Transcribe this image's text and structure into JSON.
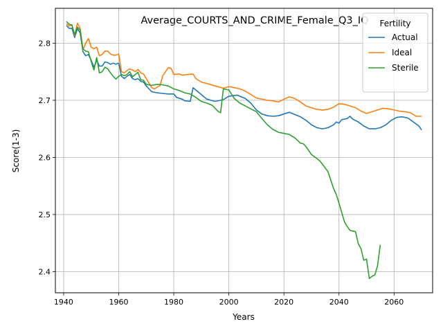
{
  "chart_data": {
    "type": "line",
    "title": "Average_COURTS_AND_CRIME_Female_Q3_IQ",
    "xlabel": "Years",
    "ylabel": "Score(1-3)",
    "xlim": [
      1937,
      2074
    ],
    "ylim": [
      2.363,
      2.861
    ],
    "xticks": [
      1940,
      1960,
      1980,
      2000,
      2020,
      2040,
      2060
    ],
    "yticks": [
      2.4,
      2.5,
      2.6,
      2.7,
      2.8
    ],
    "xtick_labels": [
      "1940",
      "1960",
      "1980",
      "2000",
      "2020",
      "2040",
      "2060"
    ],
    "ytick_labels": [
      "2.4",
      "2.5",
      "2.6",
      "2.7",
      "2.8"
    ],
    "grid": true,
    "legend": {
      "title": "Fertility",
      "placement": "top-right"
    },
    "series": [
      {
        "name": "Actual",
        "color": "#1f77b4",
        "points": [
          [
            1941,
            2.831
          ],
          [
            1942,
            2.826
          ],
          [
            1943,
            2.826
          ],
          [
            1944,
            2.81
          ],
          [
            1945,
            2.825
          ],
          [
            1946,
            2.818
          ],
          [
            1947,
            2.785
          ],
          [
            1948,
            2.778
          ],
          [
            1949,
            2.78
          ],
          [
            1950,
            2.77
          ],
          [
            1951,
            2.758
          ],
          [
            1952,
            2.77
          ],
          [
            1953,
            2.76
          ],
          [
            1954,
            2.76
          ],
          [
            1955,
            2.767
          ],
          [
            1956,
            2.766
          ],
          [
            1957,
            2.763
          ],
          [
            1958,
            2.765
          ],
          [
            1959,
            2.763
          ],
          [
            1960,
            2.765
          ],
          [
            1961,
            2.742
          ],
          [
            1962,
            2.738
          ],
          [
            1963,
            2.742
          ],
          [
            1964,
            2.745
          ],
          [
            1965,
            2.738
          ],
          [
            1966,
            2.736
          ],
          [
            1967,
            2.738
          ],
          [
            1968,
            2.733
          ],
          [
            1969,
            2.732
          ],
          [
            1970,
            2.725
          ],
          [
            1971,
            2.72
          ],
          [
            1972,
            2.715
          ],
          [
            1974,
            2.713
          ],
          [
            1976,
            2.712
          ],
          [
            1978,
            2.711
          ],
          [
            1980,
            2.711
          ],
          [
            1981,
            2.705
          ],
          [
            1983,
            2.702
          ],
          [
            1984,
            2.699
          ],
          [
            1986,
            2.698
          ],
          [
            1987,
            2.722
          ],
          [
            1988,
            2.718
          ],
          [
            1990,
            2.71
          ],
          [
            1992,
            2.702
          ],
          [
            1995,
            2.698
          ],
          [
            1998,
            2.701
          ],
          [
            2000,
            2.707
          ],
          [
            2003,
            2.709
          ],
          [
            2006,
            2.703
          ],
          [
            2008,
            2.695
          ],
          [
            2010,
            2.683
          ],
          [
            2012,
            2.676
          ],
          [
            2014,
            2.673
          ],
          [
            2016,
            2.672
          ],
          [
            2018,
            2.673
          ],
          [
            2020,
            2.676
          ],
          [
            2022,
            2.679
          ],
          [
            2024,
            2.675
          ],
          [
            2026,
            2.671
          ],
          [
            2028,
            2.665
          ],
          [
            2030,
            2.657
          ],
          [
            2032,
            2.652
          ],
          [
            2034,
            2.65
          ],
          [
            2036,
            2.652
          ],
          [
            2038,
            2.657
          ],
          [
            2039,
            2.662
          ],
          [
            2040,
            2.66
          ],
          [
            2041,
            2.666
          ],
          [
            2043,
            2.668
          ],
          [
            2044,
            2.672
          ],
          [
            2045,
            2.667
          ],
          [
            2047,
            2.662
          ],
          [
            2049,
            2.655
          ],
          [
            2051,
            2.65
          ],
          [
            2053,
            2.65
          ],
          [
            2055,
            2.652
          ],
          [
            2057,
            2.657
          ],
          [
            2059,
            2.665
          ],
          [
            2061,
            2.67
          ],
          [
            2063,
            2.671
          ],
          [
            2065,
            2.669
          ],
          [
            2067,
            2.662
          ],
          [
            2069,
            2.655
          ],
          [
            2070,
            2.648
          ]
        ]
      },
      {
        "name": "Ideal",
        "color": "#ff7f0e",
        "points": [
          [
            1941,
            2.834
          ],
          [
            1942,
            2.83
          ],
          [
            1943,
            2.832
          ],
          [
            1944,
            2.813
          ],
          [
            1945,
            2.835
          ],
          [
            1946,
            2.826
          ],
          [
            1947,
            2.788
          ],
          [
            1948,
            2.8
          ],
          [
            1949,
            2.808
          ],
          [
            1950,
            2.793
          ],
          [
            1951,
            2.79
          ],
          [
            1952,
            2.793
          ],
          [
            1953,
            2.778
          ],
          [
            1954,
            2.78
          ],
          [
            1955,
            2.786
          ],
          [
            1956,
            2.786
          ],
          [
            1957,
            2.781
          ],
          [
            1958,
            2.779
          ],
          [
            1959,
            2.779
          ],
          [
            1960,
            2.781
          ],
          [
            1961,
            2.75
          ],
          [
            1962,
            2.748
          ],
          [
            1963,
            2.752
          ],
          [
            1964,
            2.755
          ],
          [
            1965,
            2.753
          ],
          [
            1966,
            2.75
          ],
          [
            1967,
            2.754
          ],
          [
            1968,
            2.748
          ],
          [
            1969,
            2.746
          ],
          [
            1970,
            2.738
          ],
          [
            1971,
            2.73
          ],
          [
            1972,
            2.722
          ],
          [
            1973,
            2.72
          ],
          [
            1975,
            2.726
          ],
          [
            1976,
            2.743
          ],
          [
            1977,
            2.75
          ],
          [
            1978,
            2.757
          ],
          [
            1979,
            2.756
          ],
          [
            1980,
            2.745
          ],
          [
            1982,
            2.746
          ],
          [
            1983,
            2.744
          ],
          [
            1985,
            2.745
          ],
          [
            1987,
            2.746
          ],
          [
            1988,
            2.738
          ],
          [
            1990,
            2.732
          ],
          [
            1993,
            2.728
          ],
          [
            1995,
            2.725
          ],
          [
            1998,
            2.721
          ],
          [
            2000,
            2.724
          ],
          [
            2002,
            2.722
          ],
          [
            2004,
            2.72
          ],
          [
            2006,
            2.716
          ],
          [
            2008,
            2.71
          ],
          [
            2010,
            2.704
          ],
          [
            2012,
            2.702
          ],
          [
            2014,
            2.7
          ],
          [
            2016,
            2.699
          ],
          [
            2018,
            2.697
          ],
          [
            2020,
            2.702
          ],
          [
            2022,
            2.706
          ],
          [
            2024,
            2.703
          ],
          [
            2026,
            2.697
          ],
          [
            2028,
            2.69
          ],
          [
            2030,
            2.687
          ],
          [
            2032,
            2.684
          ],
          [
            2034,
            2.683
          ],
          [
            2036,
            2.684
          ],
          [
            2038,
            2.688
          ],
          [
            2040,
            2.694
          ],
          [
            2042,
            2.693
          ],
          [
            2044,
            2.69
          ],
          [
            2046,
            2.687
          ],
          [
            2048,
            2.681
          ],
          [
            2050,
            2.677
          ],
          [
            2052,
            2.68
          ],
          [
            2054,
            2.683
          ],
          [
            2056,
            2.686
          ],
          [
            2058,
            2.685
          ],
          [
            2060,
            2.683
          ],
          [
            2062,
            2.681
          ],
          [
            2064,
            2.68
          ],
          [
            2066,
            2.678
          ],
          [
            2068,
            2.672
          ],
          [
            2070,
            2.672
          ]
        ]
      },
      {
        "name": "Sterile",
        "color": "#2ca02c",
        "points": [
          [
            1941,
            2.838
          ],
          [
            1942,
            2.833
          ],
          [
            1943,
            2.832
          ],
          [
            1944,
            2.815
          ],
          [
            1945,
            2.828
          ],
          [
            1946,
            2.823
          ],
          [
            1947,
            2.79
          ],
          [
            1948,
            2.786
          ],
          [
            1949,
            2.785
          ],
          [
            1950,
            2.768
          ],
          [
            1951,
            2.753
          ],
          [
            1952,
            2.775
          ],
          [
            1953,
            2.748
          ],
          [
            1954,
            2.75
          ],
          [
            1955,
            2.758
          ],
          [
            1956,
            2.755
          ],
          [
            1957,
            2.748
          ],
          [
            1958,
            2.742
          ],
          [
            1959,
            2.737
          ],
          [
            1960,
            2.742
          ],
          [
            1961,
            2.745
          ],
          [
            1962,
            2.743
          ],
          [
            1963,
            2.745
          ],
          [
            1964,
            2.75
          ],
          [
            1965,
            2.741
          ],
          [
            1966,
            2.745
          ],
          [
            1967,
            2.749
          ],
          [
            1968,
            2.736
          ],
          [
            1969,
            2.735
          ],
          [
            1970,
            2.728
          ],
          [
            1972,
            2.726
          ],
          [
            1974,
            2.728
          ],
          [
            1976,
            2.727
          ],
          [
            1978,
            2.725
          ],
          [
            1980,
            2.72
          ],
          [
            1982,
            2.717
          ],
          [
            1984,
            2.713
          ],
          [
            1986,
            2.711
          ],
          [
            1988,
            2.705
          ],
          [
            1990,
            2.698
          ],
          [
            1992,
            2.695
          ],
          [
            1994,
            2.691
          ],
          [
            1996,
            2.681
          ],
          [
            1997,
            2.678
          ],
          [
            1998,
            2.72
          ],
          [
            2000,
            2.718
          ],
          [
            2002,
            2.703
          ],
          [
            2004,
            2.695
          ],
          [
            2006,
            2.69
          ],
          [
            2008,
            2.685
          ],
          [
            2010,
            2.68
          ],
          [
            2012,
            2.668
          ],
          [
            2014,
            2.657
          ],
          [
            2016,
            2.649
          ],
          [
            2018,
            2.644
          ],
          [
            2020,
            2.642
          ],
          [
            2022,
            2.64
          ],
          [
            2024,
            2.634
          ],
          [
            2026,
            2.625
          ],
          [
            2027,
            2.624
          ],
          [
            2028,
            2.619
          ],
          [
            2030,
            2.605
          ],
          [
            2032,
            2.598
          ],
          [
            2033,
            2.594
          ],
          [
            2034,
            2.588
          ],
          [
            2036,
            2.575
          ],
          [
            2038,
            2.546
          ],
          [
            2039,
            2.535
          ],
          [
            2040,
            2.52
          ],
          [
            2042,
            2.487
          ],
          [
            2043,
            2.479
          ],
          [
            2044,
            2.472
          ],
          [
            2046,
            2.47
          ],
          [
            2047,
            2.449
          ],
          [
            2048,
            2.44
          ],
          [
            2049,
            2.42
          ],
          [
            2050,
            2.422
          ],
          [
            2051,
            2.388
          ],
          [
            2052,
            2.392
          ],
          [
            2053,
            2.394
          ],
          [
            2054,
            2.41
          ],
          [
            2055,
            2.447
          ]
        ]
      }
    ]
  }
}
